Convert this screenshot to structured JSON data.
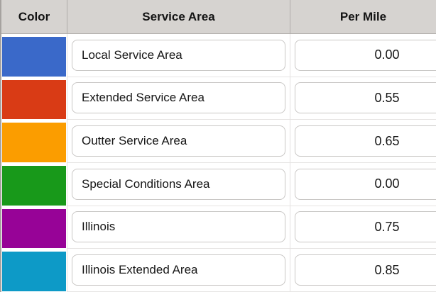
{
  "columns": [
    {
      "label": "Color"
    },
    {
      "label": "Service Area"
    },
    {
      "label": "Per Mile"
    }
  ],
  "rows": [
    {
      "color": "#3a69c9",
      "color_name": "blue",
      "service_area": "Local Service Area",
      "per_mile": "0.00"
    },
    {
      "color": "#d93b15",
      "color_name": "red",
      "service_area": "Extended Service Area",
      "per_mile": "0.55"
    },
    {
      "color": "#fb9d00",
      "color_name": "orange",
      "service_area": "Outter Service Area",
      "per_mile": "0.65"
    },
    {
      "color": "#18991a",
      "color_name": "green",
      "service_area": "Special Conditions Area",
      "per_mile": "0.00"
    },
    {
      "color": "#970397",
      "color_name": "purple",
      "service_area": "Illinois",
      "per_mile": "0.75"
    },
    {
      "color": "#0d9ac7",
      "color_name": "teal",
      "service_area": "Illinois Extended Area",
      "per_mile": "0.85"
    }
  ],
  "colors": {
    "header_bg": "#d6d3d0",
    "header_border": "#b1aeab",
    "header_divider": "#b0acaa",
    "grid_line": "#e6e4e3",
    "body_divider": "#e3e1e0",
    "input_border": "#c9c7c5",
    "left_border": "#a6a29f",
    "text": "#161616"
  }
}
